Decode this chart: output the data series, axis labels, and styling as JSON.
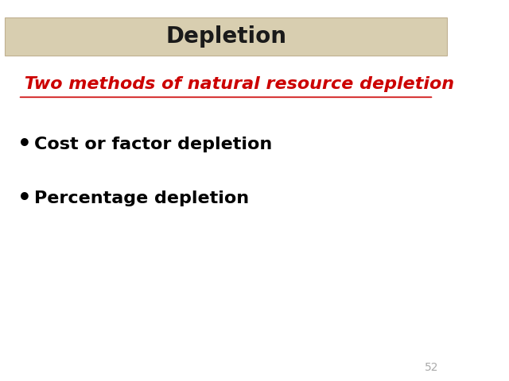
{
  "title": "Depletion",
  "title_bg_color": "#d8ceb0",
  "title_text_color": "#1a1a1a",
  "title_fontsize": 20,
  "subtitle": " Two methods of natural resource depletion",
  "subtitle_color": "#cc0000",
  "subtitle_fontsize": 16,
  "bullet_items": [
    "Cost or factor depletion",
    "Percentage depletion"
  ],
  "bullet_color": "#000000",
  "bullet_fontsize": 16,
  "background_color": "#ffffff",
  "page_number": "52",
  "page_num_color": "#aaaaaa",
  "page_num_fontsize": 10
}
